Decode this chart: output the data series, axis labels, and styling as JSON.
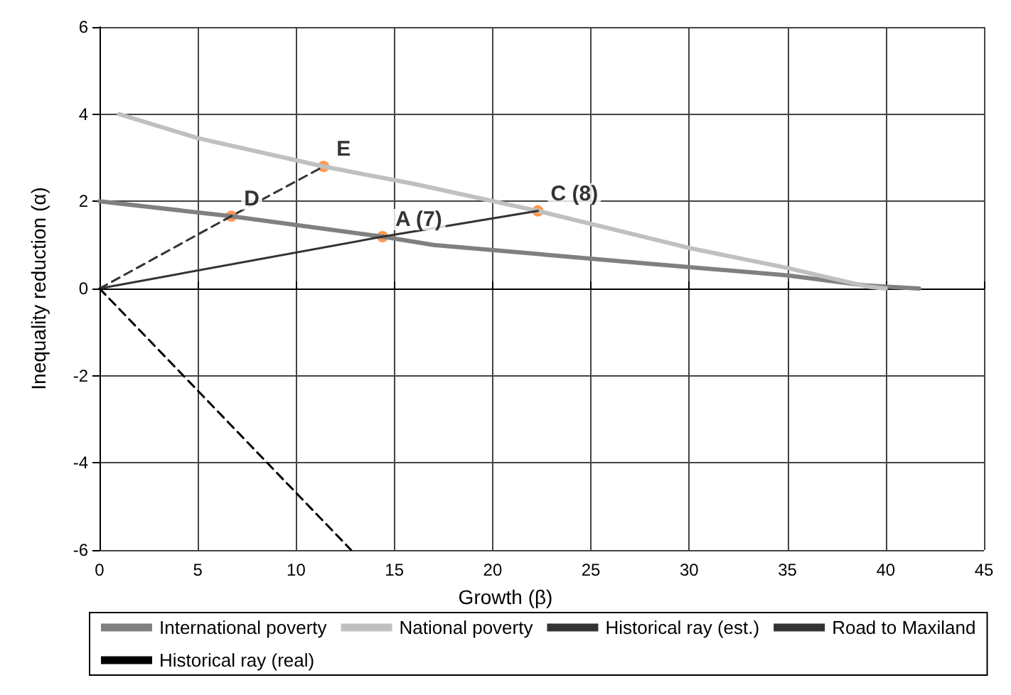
{
  "chart_data": {
    "type": "line",
    "xlabel": "Growth (β)",
    "ylabel": "Inequality reduction (α)",
    "xlim": [
      0,
      45
    ],
    "xticks": [
      0,
      5,
      10,
      15,
      20,
      25,
      30,
      35,
      40,
      45
    ],
    "ylim": [
      -6,
      6
    ],
    "yticks": [
      -6,
      -4,
      -2,
      0,
      2,
      4,
      6
    ],
    "grid": true,
    "legend": "bottom",
    "marker": "none",
    "series": [
      {
        "name": "International poverty",
        "color": "#808080",
        "line_style": "solid",
        "x": [
          0,
          6.7,
          14.4,
          17,
          27.7,
          35,
          39,
          41.7
        ],
        "values": [
          2,
          1.66,
          1.19,
          1.0,
          0.58,
          0.3,
          0.07,
          0
        ]
      },
      {
        "name": "National poverty",
        "color": "#c0c0c0",
        "line_style": "solid",
        "x": [
          1,
          5,
          11.4,
          16,
          22.3,
          30,
          35,
          39,
          40
        ],
        "values": [
          4,
          3.45,
          2.8,
          2.4,
          1.78,
          0.93,
          0.47,
          0.05,
          0
        ]
      },
      {
        "name": "Historical ray (est.)",
        "color": "#333333",
        "line_style": "solid",
        "x": [
          0,
          14.4,
          22.3
        ],
        "values": [
          0,
          1.19,
          1.78
        ]
      },
      {
        "name": "Road to Maxiland",
        "color": "#333333",
        "line_style": "dashed",
        "x": [
          0,
          6.7,
          11.4
        ],
        "values": [
          0,
          1.66,
          2.8
        ]
      },
      {
        "name": "Historical ray (real)",
        "color": "#000000",
        "line_style": "dashed",
        "x": [
          0,
          12.8
        ],
        "values": [
          0,
          -6
        ]
      },
      {
        "type": "scatter",
        "marker": "circle",
        "color": "#ff7f27",
        "x": [
          6.7,
          11.4,
          14.4,
          22.3
        ],
        "values": [
          1.66,
          2.8,
          1.19,
          1.78
        ]
      }
    ],
    "annotations": [
      {
        "text": "D",
        "x": 6.7,
        "y": 1.66
      },
      {
        "text": "E",
        "x": 11.4,
        "y": 2.8
      },
      {
        "text": "A (7)",
        "x": 14.4,
        "y": 1.19
      },
      {
        "text": "C (8)",
        "x": 22.3,
        "y": 1.78
      }
    ]
  }
}
